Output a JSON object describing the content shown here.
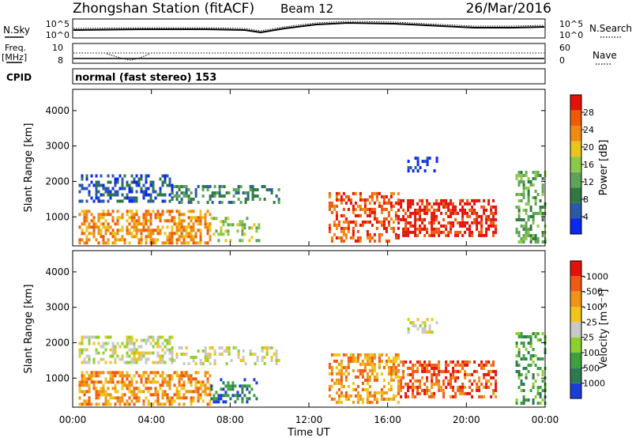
{
  "header": {
    "station": "Zhongshan Station (fitACF)",
    "beam": "Beam 12",
    "date": "26/Mar/2016"
  },
  "top_panel": {
    "left_label": "N.Sky",
    "left_top_tick": "10^5",
    "left_bottom_tick": "10^0",
    "right_top_tick": "10^5",
    "right_bottom_tick": "10^0",
    "right_label": "N.Search"
  },
  "freq_panel": {
    "left_label_line1": "Freq.",
    "left_label_line2": "[MHz]",
    "left_top_tick": "10",
    "left_bottom_tick": "8",
    "right_top_tick": "60",
    "right_bottom_tick": "0",
    "right_label": "Nave"
  },
  "cpid": {
    "label": "CPID",
    "value": "normal (fast stereo) 153"
  },
  "chart_data": [
    {
      "type": "heatmap",
      "name": "power",
      "ylabel": "Slant Range [km]",
      "ylim": [
        180,
        4600
      ],
      "yticks": [
        "1000",
        "2000",
        "3000",
        "4000"
      ],
      "xlim_hours": [
        0,
        24
      ],
      "colorbar_label": "Power [dB]",
      "colorbar_ticks": [
        "4",
        "8",
        "12",
        "16",
        "20",
        "24",
        "28"
      ],
      "colorbar_colors": [
        "#0a28f0",
        "#2c5aa8",
        "#2e7a42",
        "#5ea458",
        "#8cc84a",
        "#e8c41c",
        "#f08a12",
        "#ee5a0a",
        "#e41208"
      ],
      "regions": [
        {
          "t0": 0.3,
          "t1": 7.0,
          "r0": 300,
          "r1": 1200,
          "level": 6,
          "density": 0.55
        },
        {
          "t0": 0.3,
          "t1": 5.0,
          "r0": 1400,
          "r1": 2200,
          "level": 1,
          "density": 0.45
        },
        {
          "t0": 5.0,
          "t1": 10.5,
          "r0": 1400,
          "r1": 1900,
          "level": 2,
          "density": 0.35
        },
        {
          "t0": 7.0,
          "t1": 9.5,
          "r0": 300,
          "r1": 1000,
          "level": 4,
          "density": 0.3
        },
        {
          "t0": 13.0,
          "t1": 16.5,
          "r0": 300,
          "r1": 1700,
          "level": 7,
          "density": 0.45
        },
        {
          "t0": 16.5,
          "t1": 21.5,
          "r0": 500,
          "r1": 1500,
          "level": 8,
          "density": 0.55
        },
        {
          "t0": 17.0,
          "t1": 18.5,
          "r0": 2300,
          "r1": 2700,
          "level": 0,
          "density": 0.4
        },
        {
          "t0": 22.5,
          "t1": 24.0,
          "r0": 300,
          "r1": 2300,
          "level": 3,
          "density": 0.4
        }
      ]
    },
    {
      "type": "heatmap",
      "name": "velocity",
      "ylabel": "Slant Range [km]",
      "ylim": [
        180,
        4600
      ],
      "yticks": [
        "1000",
        "2000",
        "3000",
        "4000"
      ],
      "xlim_hours": [
        0,
        24
      ],
      "colorbar_label": "Velocity [m s⁻¹]",
      "colorbar_ticks": [
        "1000",
        "500",
        "100",
        "25",
        "-25",
        "-100",
        "-500",
        "-1000"
      ],
      "colorbar_colors": [
        "#1a3ed8",
        "#2c7a52",
        "#3ca03c",
        "#8cd02c",
        "#c8c8c8",
        "#f0c418",
        "#f09418",
        "#f05a12",
        "#e41208"
      ],
      "regions": [
        {
          "t0": 0.3,
          "t1": 7.0,
          "r0": 300,
          "r1": 1200,
          "level": 6,
          "density": 0.55
        },
        {
          "t0": 0.3,
          "t1": 5.0,
          "r0": 1400,
          "r1": 2200,
          "level": 4,
          "density": 0.45
        },
        {
          "t0": 5.0,
          "t1": 10.5,
          "r0": 1400,
          "r1": 1900,
          "level": 4,
          "density": 0.35
        },
        {
          "t0": 7.0,
          "t1": 9.5,
          "r0": 300,
          "r1": 1000,
          "level": 1,
          "density": 0.3
        },
        {
          "t0": 13.0,
          "t1": 16.5,
          "r0": 300,
          "r1": 1700,
          "level": 6,
          "density": 0.45
        },
        {
          "t0": 16.5,
          "t1": 21.5,
          "r0": 500,
          "r1": 1500,
          "level": 7,
          "density": 0.5
        },
        {
          "t0": 17.0,
          "t1": 18.5,
          "r0": 2300,
          "r1": 2700,
          "level": 4,
          "density": 0.4
        },
        {
          "t0": 22.5,
          "t1": 24.0,
          "r0": 300,
          "r1": 2300,
          "level": 2,
          "density": 0.4
        }
      ]
    }
  ],
  "xaxis": {
    "ticks": [
      "00:00",
      "04:00",
      "08:00",
      "12:00",
      "16:00",
      "20:00",
      "00:00"
    ],
    "label": "Time UT"
  }
}
